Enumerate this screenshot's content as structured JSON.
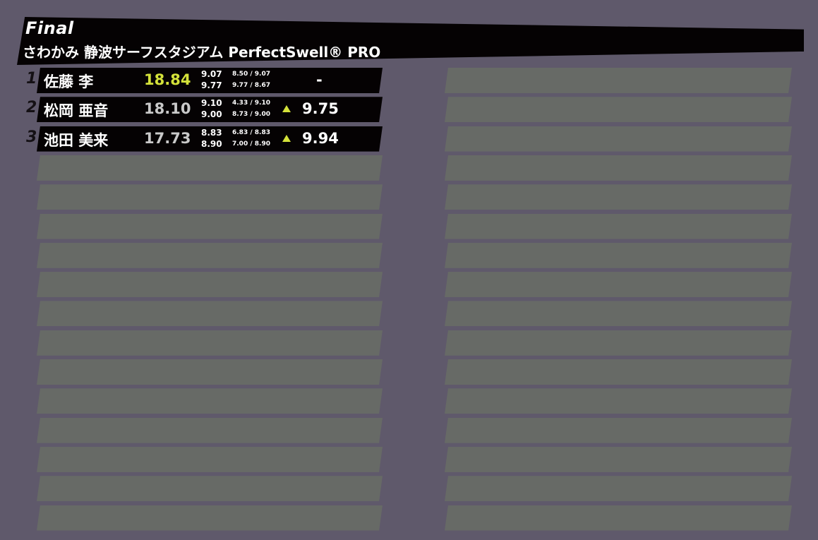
{
  "header": {
    "title": "Final",
    "subtitle": "さわかみ 静波サーフスタジアム PerfectSwell® PRO"
  },
  "colors": {
    "background": "#5f596b",
    "row_empty": "#676a66",
    "leader": "#d4e23a",
    "bar": "#050203"
  },
  "results": [
    {
      "rank": "1",
      "name": "佐藤 李",
      "total": "18.84",
      "best": [
        "9.07",
        "9.77"
      ],
      "judges": [
        "8.50 / 9.07",
        "9.77 / 8.67"
      ],
      "needs": "-",
      "leader": true
    },
    {
      "rank": "2",
      "name": "松岡 亜音",
      "total": "18.10",
      "best": [
        "9.10",
        "9.00"
      ],
      "judges": [
        "4.33 / 9.10",
        "8.73 / 9.00"
      ],
      "needs": "9.75",
      "leader": false,
      "icon": "triangle-up-icon"
    },
    {
      "rank": "3",
      "name": "池田 美来",
      "total": "17.73",
      "best": [
        "8.83",
        "8.90"
      ],
      "judges": [
        "6.83 / 8.83",
        "7.00 / 8.90"
      ],
      "needs": "9.94",
      "leader": false,
      "icon": "triangle-up-icon"
    }
  ]
}
